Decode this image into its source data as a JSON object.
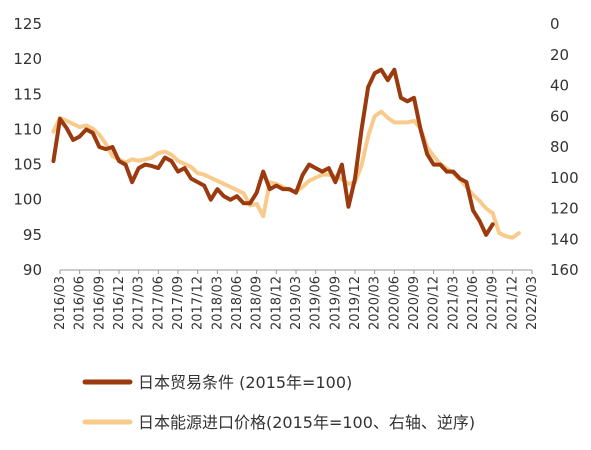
{
  "chart_data": {
    "type": "line",
    "title": "",
    "xlabel": "",
    "ylabel": "",
    "grid": false,
    "legend_position": "bottom",
    "x_tick_labels": [
      "2016/03",
      "2016/06",
      "2016/09",
      "2016/12",
      "2017/03",
      "2017/06",
      "2017/09",
      "2017/12",
      "2018/03",
      "2018/06",
      "2018/09",
      "2018/12",
      "2019/03",
      "2019/06",
      "2019/09",
      "2019/12",
      "2020/03",
      "2020/06",
      "2020/09",
      "2020/12",
      "2021/03",
      "2021/06",
      "2021/09",
      "2021/12",
      "2022/03"
    ],
    "left_axis": {
      "min": 90,
      "max": 125,
      "ticks": [
        90,
        95,
        100,
        105,
        110,
        115,
        120,
        125
      ]
    },
    "right_axis": {
      "min": 0,
      "max": 160,
      "inverted": true,
      "ticks": [
        0,
        20,
        40,
        60,
        80,
        100,
        120,
        140,
        160
      ]
    },
    "series": [
      {
        "name": "日本贸易条件 (2015年=100)",
        "axis": "left",
        "color": "#9B3A0E",
        "start": "2016/02",
        "values": [
          105.5,
          111.5,
          110.2,
          108.5,
          109.0,
          110.0,
          109.5,
          107.5,
          107.2,
          107.5,
          105.5,
          105.0,
          102.5,
          104.5,
          105.0,
          104.8,
          104.5,
          106.0,
          105.5,
          104.0,
          104.5,
          103.0,
          102.5,
          102.0,
          100.0,
          101.5,
          100.5,
          100.0,
          100.5,
          99.5,
          99.5,
          101.0,
          104.0,
          101.5,
          102.0,
          101.5,
          101.5,
          101.0,
          103.5,
          105.0,
          104.5,
          104.0,
          104.5,
          102.5,
          105.0,
          99.0,
          103.0,
          110.0,
          116.0,
          118.0,
          118.5,
          117.0,
          118.5,
          114.5,
          114.0,
          114.5,
          110.0,
          106.5,
          105.0,
          105.0,
          104.0,
          104.0,
          103.0,
          102.5,
          98.5,
          97.0,
          95.0,
          96.5
        ]
      },
      {
        "name": "日本能源进口价格(2015年=100、右轴、逆序)",
        "axis": "right",
        "color": "#F8CB8C",
        "start": "2016/02",
        "values": [
          70,
          61,
          63,
          65,
          67,
          66,
          68,
          72,
          78,
          86,
          88,
          90,
          88,
          89,
          88,
          87,
          84,
          83,
          85,
          89,
          91,
          93,
          97,
          98,
          100,
          102,
          104,
          106,
          108,
          110,
          118,
          117,
          125,
          103,
          104,
          106,
          108,
          109,
          106,
          102,
          100,
          98,
          98,
          99,
          101,
          104,
          103,
          92,
          73,
          60,
          57,
          61,
          64,
          64,
          64,
          63,
          68,
          80,
          86,
          91,
          94,
          97,
          101,
          106,
          111,
          115,
          120,
          123,
          136,
          138,
          139,
          136
        ]
      }
    ]
  }
}
